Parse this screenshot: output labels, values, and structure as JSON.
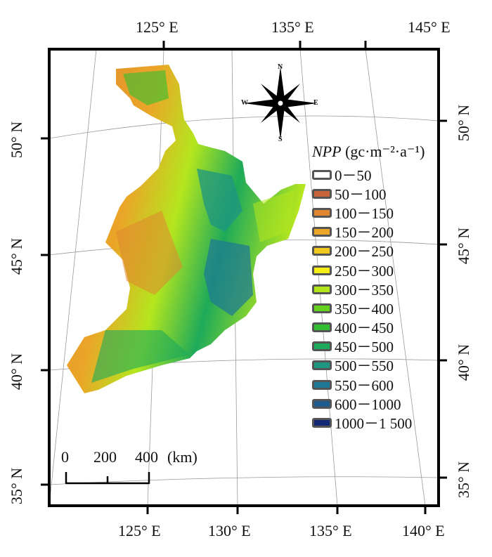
{
  "map": {
    "longitude_labels_top": [
      "125° E",
      "135° E",
      "145° E"
    ],
    "longitude_labels_bottom": [
      "125° E",
      "130° E",
      "135° E",
      "140° E"
    ],
    "latitude_labels_left": [
      "50° N",
      "45° N",
      "40° N",
      "35° N"
    ],
    "latitude_labels_right": [
      "50° N",
      "45° N",
      "40° N",
      "35° N"
    ]
  },
  "compass": {
    "n": "N",
    "s": "S",
    "e": "E",
    "w": "W"
  },
  "legend": {
    "title_var": "NPP",
    "title_unit": " (gc·m⁻²·a⁻¹)",
    "classes": [
      {
        "label": "0－50",
        "color": "#ffffff"
      },
      {
        "label": "50－100",
        "color": "#c8643a"
      },
      {
        "label": "100－150",
        "color": "#e0862e"
      },
      {
        "label": "150－200",
        "color": "#eaa628"
      },
      {
        "label": "200－250",
        "color": "#f0c81e"
      },
      {
        "label": "250－300",
        "color": "#f4ee14"
      },
      {
        "label": "300－350",
        "color": "#b4e61e"
      },
      {
        "label": "350－400",
        "color": "#64d21e"
      },
      {
        "label": "400－450",
        "color": "#32be32"
      },
      {
        "label": "450－500",
        "color": "#1eaa5a"
      },
      {
        "label": "500－550",
        "color": "#1e9682"
      },
      {
        "label": "550－600",
        "color": "#1e7896"
      },
      {
        "label": "600－1000",
        "color": "#1e5a8c"
      },
      {
        "label": "1000－1 500",
        "color": "#142878"
      }
    ]
  },
  "scale_bar": {
    "ticks": [
      "0",
      "200",
      "400"
    ],
    "unit": "(km)"
  }
}
